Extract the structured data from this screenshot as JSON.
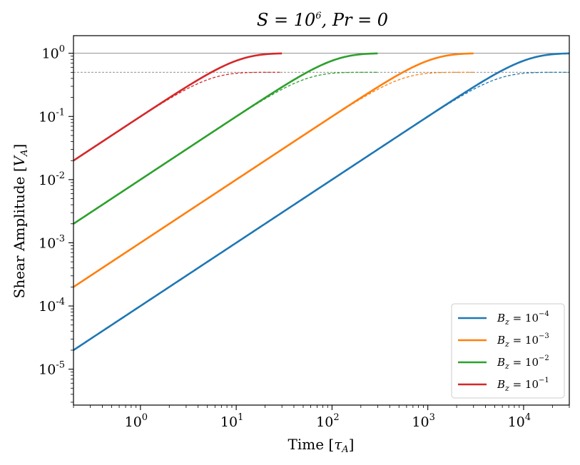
{
  "chart_data": {
    "type": "line",
    "title": "S = 10^6, Pr = 0",
    "title_parts": {
      "s_base": "S = 10",
      "s_exp": "6",
      "rest": ", Pr = 0"
    },
    "xlabel": "Time [τ_A]",
    "xlabel_parts": {
      "text": "Time [",
      "sym": "τ",
      "sub": "A",
      "close": "]"
    },
    "ylabel": "Shear Amplitude [V_A]",
    "ylabel_parts": {
      "text": "Shear Amplitude [",
      "sym": "V",
      "sub": "A",
      "close": "]"
    },
    "xscale": "log",
    "yscale": "log",
    "xlim": [
      0.2,
      30000
    ],
    "ylim": [
      2.7e-06,
      1.9
    ],
    "x_ticks": [
      {
        "value": 1,
        "base": "10",
        "exp": "0"
      },
      {
        "value": 10,
        "base": "10",
        "exp": "1"
      },
      {
        "value": 100,
        "base": "10",
        "exp": "2"
      },
      {
        "value": 1000,
        "base": "10",
        "exp": "3"
      },
      {
        "value": 10000,
        "base": "10",
        "exp": "4"
      }
    ],
    "y_ticks": [
      {
        "value": 1e-05,
        "base": "10",
        "exp": "-5"
      },
      {
        "value": 0.0001,
        "base": "10",
        "exp": "-4"
      },
      {
        "value": 0.001,
        "base": "10",
        "exp": "-3"
      },
      {
        "value": 0.01,
        "base": "10",
        "exp": "-2"
      },
      {
        "value": 0.1,
        "base": "10",
        "exp": "-1"
      },
      {
        "value": 1,
        "base": "10",
        "exp": "0"
      }
    ],
    "reference_lines": [
      {
        "y": 1.0,
        "style": "solid",
        "color": "#808080"
      },
      {
        "y": 0.5,
        "style": "dashed",
        "color": "#808080"
      }
    ],
    "series": [
      {
        "name": "B_z = 10^-4",
        "label_base": "B",
        "label_sub": "z",
        "label_mid": " = 10",
        "label_exp": "−4",
        "bz": 0.0001,
        "color": "#1f77b4",
        "t_end": 30000,
        "solid_saturation": 1.0,
        "dashed_saturation": 0.5
      },
      {
        "name": "B_z = 10^-3",
        "label_base": "B",
        "label_sub": "z",
        "label_mid": " = 10",
        "label_exp": "−3",
        "bz": 0.001,
        "color": "#ff7f0e",
        "t_end": 3000,
        "solid_saturation": 1.0,
        "dashed_saturation": 0.5
      },
      {
        "name": "B_z = 10^-2",
        "label_base": "B",
        "label_sub": "z",
        "label_mid": " = 10",
        "label_exp": "−2",
        "bz": 0.01,
        "color": "#2ca02c",
        "t_end": 300,
        "solid_saturation": 1.0,
        "dashed_saturation": 0.5
      },
      {
        "name": "B_z = 10^-1",
        "label_base": "B",
        "label_sub": "z",
        "label_mid": " = 10",
        "label_exp": "−1",
        "bz": 0.1,
        "color": "#d62728",
        "t_end": 30,
        "solid_saturation": 1.0,
        "dashed_saturation": 0.5
      }
    ],
    "legend_position": "lower-right"
  }
}
